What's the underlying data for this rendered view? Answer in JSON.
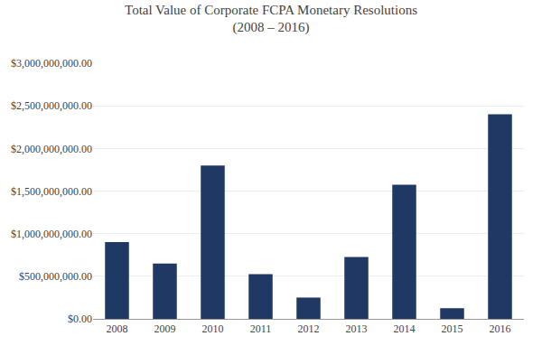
{
  "chart_data": {
    "type": "bar",
    "title": "Total Value of Corporate FCPA Monetary Resolutions",
    "subtitle": "(2008 – 2016)",
    "categories": [
      "2008",
      "2009",
      "2010",
      "2011",
      "2012",
      "2013",
      "2014",
      "2015",
      "2016"
    ],
    "values": [
      900000000,
      650000000,
      1800000000,
      525000000,
      250000000,
      725000000,
      1575000000,
      125000000,
      2400000000
    ],
    "color": "#1f3864",
    "ylim": [
      0,
      3000000000
    ],
    "yticks": [
      {
        "value": 0,
        "label": "$0.00"
      },
      {
        "value": 500000000,
        "label": "$500,000,000.00"
      },
      {
        "value": 1000000000,
        "label": "$1,000,000,000.00"
      },
      {
        "value": 1500000000,
        "label": "$1,500,000,000.00"
      },
      {
        "value": 2000000000,
        "label": "$2,000,000,000.00"
      },
      {
        "value": 2500000000,
        "label": "$2,500,000,000.00"
      },
      {
        "value": 3000000000,
        "label": "$3,000,000,000.00"
      }
    ],
    "grid": true
  }
}
